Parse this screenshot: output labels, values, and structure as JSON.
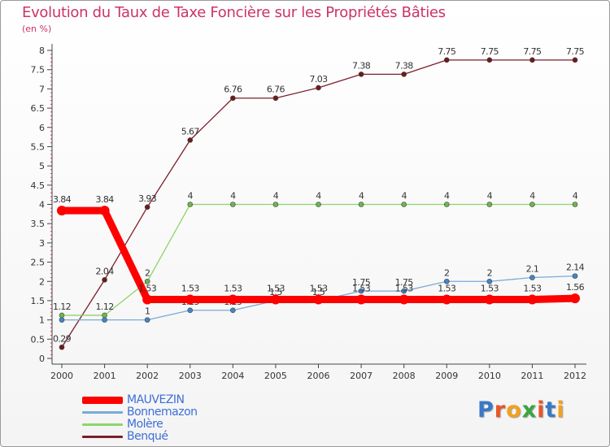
{
  "title": "Evolution du Taux de Taxe Foncière sur les Propriétés Bâties",
  "subtitle": "(en %)",
  "logo": {
    "text": "Proxiti",
    "colors": [
      "#3a78c8",
      "#e8562a",
      "#f2a11f",
      "#3aa542",
      "#e8562a",
      "#3a78c8",
      "#f2a11f"
    ]
  },
  "chart_data": {
    "type": "line",
    "title": "Evolution du Taux de Taxe Foncière sur les Propriétés Bâties",
    "ylabel": "(en %)",
    "xlabel": "",
    "ylim": [
      0,
      8
    ],
    "yticks": [
      "0",
      "0.5",
      "1",
      "1.5",
      "2",
      "2.5",
      "3",
      "3.5",
      "4",
      "4.5",
      "5",
      "5.5",
      "6",
      "6.5",
      "7",
      "7.5",
      "8"
    ],
    "categories": [
      "2000",
      "2001",
      "2002",
      "2003",
      "2004",
      "2005",
      "2006",
      "2007",
      "2008",
      "2009",
      "2010",
      "2011",
      "2012"
    ],
    "grid": false,
    "legend_position": "bottom-left",
    "series": [
      {
        "name": "Benqué",
        "color": "#7a1f2b",
        "marker": "#6e1a1a",
        "style": "thin",
        "values": [
          0.29,
          2.04,
          3.93,
          5.67,
          6.76,
          6.76,
          7.03,
          7.38,
          7.38,
          7.75,
          7.75,
          7.75,
          7.75
        ],
        "labels": [
          "0.29",
          "2.04",
          "3.93",
          "5.67",
          "6.76",
          "6.76",
          "7.03",
          "7.38",
          "7.38",
          "7.75",
          "7.75",
          "7.75",
          "7.75"
        ]
      },
      {
        "name": "Molère",
        "color": "#8fd46b",
        "marker": "#6ab84a",
        "style": "thin",
        "values": [
          1.12,
          1.12,
          2,
          4,
          4,
          4,
          4,
          4,
          4,
          4,
          4,
          4,
          4
        ],
        "labels": [
          "1.12",
          "1.12",
          "2",
          "4",
          "4",
          "4",
          "4",
          "4",
          "4",
          "4",
          "4",
          "4",
          "4"
        ]
      },
      {
        "name": "Bonnemazon",
        "color": "#7aaad8",
        "marker": "#3f86c8",
        "style": "thin",
        "values": [
          1,
          1,
          1,
          1.25,
          1.25,
          1.5,
          1.5,
          1.75,
          1.75,
          2,
          2,
          2.1,
          2.14
        ],
        "labels": [
          "",
          "",
          "1",
          "1.25",
          "1.25",
          "1.5",
          "1.5",
          "1.75",
          "1.75",
          "2",
          "2",
          "2.1",
          "2.14"
        ]
      },
      {
        "name": "MAUVEZIN",
        "color": "#ff0000",
        "marker": "#ff0000",
        "style": "thick",
        "values": [
          3.84,
          3.84,
          1.53,
          1.53,
          1.53,
          1.53,
          1.53,
          1.53,
          1.53,
          1.53,
          1.53,
          1.53,
          1.56
        ],
        "labels": [
          "3.84",
          "3.84",
          "1.53",
          "1.53",
          "1.53",
          "1.53",
          "1.53",
          "1.53",
          "1.53",
          "1.53",
          "1.53",
          "1.53",
          "1.56"
        ]
      }
    ],
    "legend": [
      {
        "name": "MAUVEZIN",
        "color": "#ff0000",
        "style": "thick"
      },
      {
        "name": "Bonnemazon",
        "color": "#7aaad8",
        "style": "thin"
      },
      {
        "name": "Molère",
        "color": "#8fd46b",
        "style": "thin"
      },
      {
        "name": "Benqué",
        "color": "#7a1f2b",
        "style": "thin"
      }
    ]
  }
}
